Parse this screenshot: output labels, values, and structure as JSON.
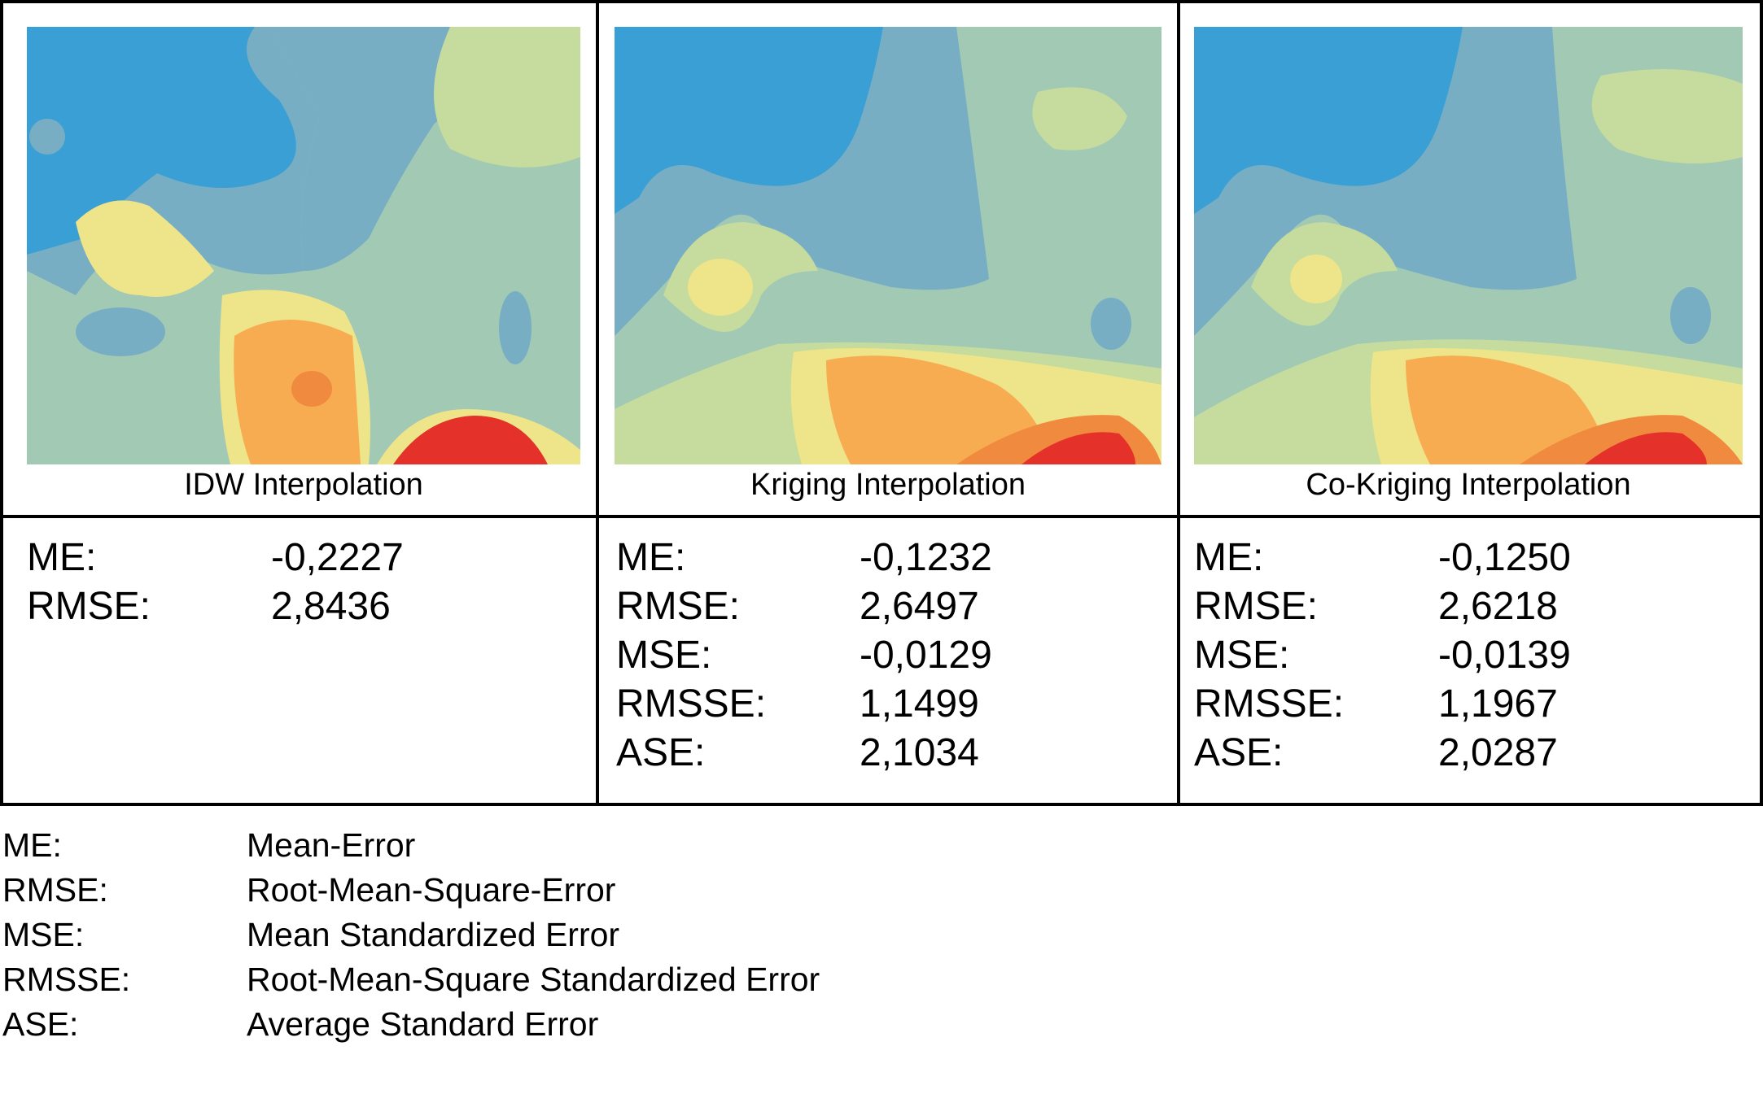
{
  "panels": [
    {
      "caption": "IDW Interpolation",
      "stats": [
        {
          "key": "ME:",
          "value": "-0,2227"
        },
        {
          "key": "RMSE:",
          "value": "2,8436"
        }
      ]
    },
    {
      "caption": "Kriging Interpolation",
      "stats": [
        {
          "key": "ME:",
          "value": "-0,1232"
        },
        {
          "key": "RMSE:",
          "value": "2,6497"
        },
        {
          "key": "MSE:",
          "value": "-0,0129"
        },
        {
          "key": "RMSSE:",
          "value": "1,1499"
        },
        {
          "key": "ASE:",
          "value": "2,1034"
        }
      ]
    },
    {
      "caption": "Co-Kriging Interpolation",
      "stats": [
        {
          "key": "ME:",
          "value": "-0,1250"
        },
        {
          "key": "RMSE:",
          "value": "2,6218"
        },
        {
          "key": "MSE:",
          "value": "-0,0139"
        },
        {
          "key": "RMSSE:",
          "value": "1,1967"
        },
        {
          "key": "ASE:",
          "value": "2,0287"
        }
      ]
    }
  ],
  "legend": [
    {
      "key": "ME:",
      "definition": "Mean-Error"
    },
    {
      "key": "RMSE:",
      "definition": "Root-Mean-Square-Error"
    },
    {
      "key": "MSE:",
      "definition": "Mean Standardized Error"
    },
    {
      "key": "RMSSE:",
      "definition": "Root-Mean-Square Standardized Error"
    },
    {
      "key": "ASE:",
      "definition": "Average Standard Error"
    }
  ],
  "colors": {
    "blue": "#3a9fd4",
    "steel": "#77aec4",
    "teal": "#a1c9b4",
    "pale_green": "#c5dc9e",
    "yellow": "#eee48a",
    "orange": "#f7ac52",
    "dark_orange": "#f08a3e",
    "red": "#e4322b"
  }
}
